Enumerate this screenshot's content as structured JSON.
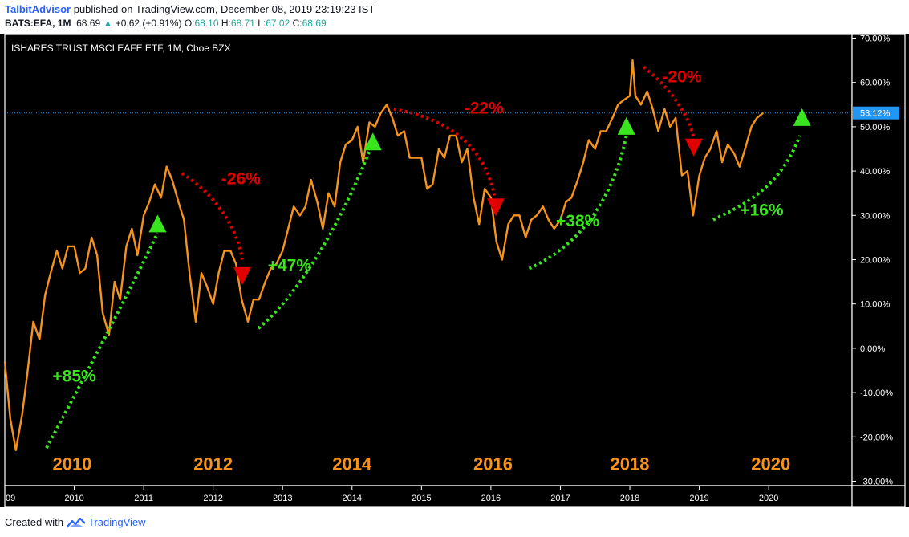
{
  "header": {
    "user": "TalbitAdvisor",
    "published": " published on TradingView.com, December 08, 2019 23:19:23 IST",
    "symbol": "BATS:EFA, 1M",
    "last": "68.69",
    "change": "+0.62 (+0.91%)",
    "o_label": "O:",
    "o_value": "68.10",
    "h_label": "H:",
    "h_value": "68.71",
    "l_label": "L:",
    "l_value": "67.02",
    "c_label": "C:",
    "c_value": "68.69"
  },
  "footer": {
    "created": "Created with",
    "brand": "TradingView"
  },
  "colors": {
    "background": "#000000",
    "line": "#f7931a",
    "up": "#39e61e",
    "down": "#e00000",
    "price_tag": "#2196f3",
    "axis_text": "#ffffff",
    "big_year": "#f7931a",
    "price_line": "#2196f3"
  },
  "chart_data": {
    "type": "line",
    "title": "ISHARES TRUST MSCI EAFE ETF, 1M, Cboe BZX",
    "unit": "percent change",
    "ylim": [
      -31,
      71
    ],
    "y_ticks": [
      70,
      60,
      50,
      40,
      30,
      20,
      10,
      0,
      -10,
      -20,
      -30
    ],
    "y_tick_labels": [
      "70.00%",
      "60.00%",
      "50.00%",
      "40.00%",
      "30.00%",
      "20.00%",
      "10.00%",
      "0.00%",
      "-10.00%",
      "-20.00%",
      "-30.00%"
    ],
    "xlim": [
      2009.0,
      2021.2
    ],
    "x_ticks": [
      2010,
      2011,
      2012,
      2013,
      2014,
      2015,
      2016,
      2017,
      2018,
      2019,
      2020
    ],
    "x_tick_labels": [
      "2010",
      "2011",
      "2012",
      "2013",
      "2014",
      "2015",
      "2016",
      "2017",
      "2018",
      "2019",
      "2020"
    ],
    "edge_label": "09",
    "current": {
      "value": 53.12,
      "label": "53.12%"
    },
    "series": [
      {
        "points": [
          [
            2009.0,
            -3
          ],
          [
            2009.08,
            -16
          ],
          [
            2009.16,
            -23
          ],
          [
            2009.25,
            -15
          ],
          [
            2009.33,
            -5
          ],
          [
            2009.41,
            6
          ],
          [
            2009.5,
            2
          ],
          [
            2009.58,
            12
          ],
          [
            2009.66,
            17
          ],
          [
            2009.75,
            22
          ],
          [
            2009.83,
            18
          ],
          [
            2009.91,
            23
          ],
          [
            2010.0,
            23
          ],
          [
            2010.08,
            17
          ],
          [
            2010.16,
            18
          ],
          [
            2010.25,
            25
          ],
          [
            2010.33,
            21
          ],
          [
            2010.41,
            8
          ],
          [
            2010.5,
            3
          ],
          [
            2010.58,
            15
          ],
          [
            2010.66,
            11
          ],
          [
            2010.75,
            23
          ],
          [
            2010.83,
            27
          ],
          [
            2010.91,
            21
          ],
          [
            2011.0,
            30
          ],
          [
            2011.08,
            33
          ],
          [
            2011.16,
            37
          ],
          [
            2011.25,
            34
          ],
          [
            2011.33,
            41
          ],
          [
            2011.41,
            38
          ],
          [
            2011.5,
            33
          ],
          [
            2011.58,
            29
          ],
          [
            2011.66,
            17
          ],
          [
            2011.75,
            6
          ],
          [
            2011.83,
            17
          ],
          [
            2011.91,
            14
          ],
          [
            2012.0,
            10
          ],
          [
            2012.08,
            17
          ],
          [
            2012.16,
            22
          ],
          [
            2012.25,
            22
          ],
          [
            2012.33,
            19
          ],
          [
            2012.41,
            11
          ],
          [
            2012.5,
            6
          ],
          [
            2012.58,
            11
          ],
          [
            2012.66,
            11
          ],
          [
            2012.75,
            15
          ],
          [
            2012.83,
            18
          ],
          [
            2012.91,
            19
          ],
          [
            2013.0,
            22
          ],
          [
            2013.08,
            27
          ],
          [
            2013.16,
            32
          ],
          [
            2013.25,
            30
          ],
          [
            2013.33,
            32
          ],
          [
            2013.41,
            38
          ],
          [
            2013.5,
            33
          ],
          [
            2013.58,
            27
          ],
          [
            2013.66,
            35
          ],
          [
            2013.75,
            32
          ],
          [
            2013.83,
            42
          ],
          [
            2013.91,
            46
          ],
          [
            2014.0,
            47
          ],
          [
            2014.08,
            50
          ],
          [
            2014.16,
            42
          ],
          [
            2014.25,
            51
          ],
          [
            2014.33,
            50
          ],
          [
            2014.41,
            53
          ],
          [
            2014.5,
            55
          ],
          [
            2014.58,
            52
          ],
          [
            2014.66,
            48
          ],
          [
            2014.75,
            49
          ],
          [
            2014.83,
            43
          ],
          [
            2014.91,
            43
          ],
          [
            2015.0,
            43
          ],
          [
            2015.08,
            36
          ],
          [
            2015.16,
            37
          ],
          [
            2015.25,
            45
          ],
          [
            2015.33,
            43
          ],
          [
            2015.41,
            48
          ],
          [
            2015.5,
            48
          ],
          [
            2015.58,
            42
          ],
          [
            2015.66,
            45
          ],
          [
            2015.75,
            34
          ],
          [
            2015.83,
            28
          ],
          [
            2015.91,
            36
          ],
          [
            2016.0,
            34
          ],
          [
            2016.08,
            24
          ],
          [
            2016.16,
            20
          ],
          [
            2016.25,
            28
          ],
          [
            2016.33,
            30
          ],
          [
            2016.41,
            30
          ],
          [
            2016.5,
            25
          ],
          [
            2016.58,
            29
          ],
          [
            2016.66,
            30
          ],
          [
            2016.75,
            32
          ],
          [
            2016.83,
            29
          ],
          [
            2016.91,
            27
          ],
          [
            2017.0,
            29
          ],
          [
            2017.08,
            33
          ],
          [
            2017.16,
            34
          ],
          [
            2017.25,
            38
          ],
          [
            2017.33,
            42
          ],
          [
            2017.41,
            47
          ],
          [
            2017.5,
            45
          ],
          [
            2017.58,
            49
          ],
          [
            2017.66,
            49
          ],
          [
            2017.75,
            52
          ],
          [
            2017.83,
            55
          ],
          [
            2017.91,
            56
          ],
          [
            2018.0,
            57
          ],
          [
            2018.04,
            65
          ],
          [
            2018.08,
            57
          ],
          [
            2018.16,
            55
          ],
          [
            2018.25,
            58
          ],
          [
            2018.33,
            54
          ],
          [
            2018.41,
            49
          ],
          [
            2018.5,
            54
          ],
          [
            2018.58,
            50
          ],
          [
            2018.66,
            52
          ],
          [
            2018.75,
            39
          ],
          [
            2018.83,
            40
          ],
          [
            2018.91,
            30
          ],
          [
            2019.0,
            39
          ],
          [
            2019.08,
            43
          ],
          [
            2019.16,
            45
          ],
          [
            2019.25,
            49
          ],
          [
            2019.33,
            42
          ],
          [
            2019.41,
            46
          ],
          [
            2019.5,
            44
          ],
          [
            2019.58,
            41
          ],
          [
            2019.66,
            45
          ],
          [
            2019.75,
            50
          ],
          [
            2019.83,
            52
          ],
          [
            2019.92,
            53.12
          ]
        ]
      }
    ],
    "annotations": [
      {
        "kind": "up",
        "text": "+85%",
        "x": 2010.0,
        "y": -7.5,
        "path": [
          [
            2009.6,
            -22.5
          ],
          [
            2010.2,
            -5
          ],
          [
            2010.8,
            13
          ],
          [
            2011.2,
            26
          ]
        ]
      },
      {
        "kind": "down",
        "text": "-26%",
        "x": 2012.4,
        "y": 37,
        "path": [
          [
            2011.55,
            39.5
          ],
          [
            2012.05,
            34.5
          ],
          [
            2012.35,
            27
          ],
          [
            2012.42,
            20
          ]
        ]
      },
      {
        "kind": "up",
        "text": "+47%",
        "x": 2013.1,
        "y": 17.5,
        "path": [
          [
            2012.65,
            4.5
          ],
          [
            2013.15,
            11
          ],
          [
            2013.75,
            25
          ],
          [
            2014.25,
            44.5
          ]
        ]
      },
      {
        "kind": "down",
        "text": "-22%",
        "x": 2015.9,
        "y": 53,
        "path": [
          [
            2014.6,
            54
          ],
          [
            2015.35,
            52
          ],
          [
            2015.9,
            46
          ],
          [
            2016.05,
            34.5
          ]
        ]
      },
      {
        "kind": "up",
        "text": "+38%",
        "x": 2017.25,
        "y": 27.5,
        "path": [
          [
            2016.55,
            18
          ],
          [
            2017.25,
            23
          ],
          [
            2017.75,
            33
          ],
          [
            2017.95,
            48
          ]
        ]
      },
      {
        "kind": "down",
        "text": "-20%",
        "x": 2018.75,
        "y": 60,
        "path": [
          [
            2018.2,
            63.5
          ],
          [
            2018.6,
            58.5
          ],
          [
            2018.85,
            52.5
          ],
          [
            2018.92,
            47.5
          ]
        ]
      },
      {
        "kind": "up",
        "text": "+16%",
        "x": 2019.9,
        "y": 30,
        "path": [
          [
            2019.2,
            29
          ],
          [
            2019.65,
            32.5
          ],
          [
            2020.15,
            36
          ],
          [
            2020.45,
            48
          ]
        ]
      }
    ],
    "markers": [
      {
        "kind": "up",
        "x": 2011.2,
        "y": 28
      },
      {
        "kind": "down",
        "x": 2012.42,
        "y": 16.5
      },
      {
        "kind": "up",
        "x": 2014.3,
        "y": 46.5
      },
      {
        "kind": "down",
        "x": 2016.07,
        "y": 32
      },
      {
        "kind": "up",
        "x": 2017.95,
        "y": 50
      },
      {
        "kind": "down",
        "x": 2018.92,
        "y": 45.5
      },
      {
        "kind": "up",
        "x": 2020.48,
        "y": 52
      }
    ],
    "big_year_labels": [
      {
        "text": "2010",
        "x": 2009.97
      },
      {
        "text": "2012",
        "x": 2012.0
      },
      {
        "text": "2014",
        "x": 2014.0
      },
      {
        "text": "2016",
        "x": 2016.03
      },
      {
        "text": "2018",
        "x": 2018.0
      },
      {
        "text": "2020",
        "x": 2020.03
      }
    ],
    "big_year_level": -27.5
  }
}
